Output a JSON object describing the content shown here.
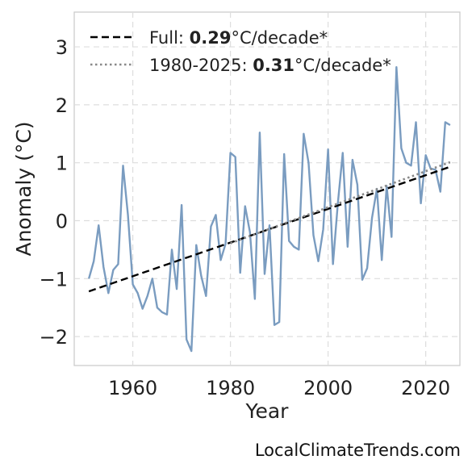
{
  "chart_data": {
    "type": "line",
    "xlabel": "Year",
    "ylabel": "Anomaly (°C)",
    "xlim": [
      1948,
      2027
    ],
    "ylim": [
      -2.5,
      3.6
    ],
    "x_ticks": [
      1960,
      1980,
      2000,
      2020
    ],
    "y_ticks": [
      -2,
      -1,
      0,
      1,
      2,
      3
    ],
    "y_tick_labels": [
      "−2",
      "−1",
      "0",
      "1",
      "2",
      "3"
    ],
    "grid": true,
    "legend_position": "top-left",
    "series": [
      {
        "style": "solid",
        "color": "#7a9cc0",
        "x": [
          1951,
          1952,
          1953,
          1954,
          1955,
          1956,
          1957,
          1958,
          1959,
          1960,
          1961,
          1962,
          1963,
          1964,
          1965,
          1966,
          1967,
          1968,
          1969,
          1970,
          1971,
          1972,
          1973,
          1974,
          1975,
          1976,
          1977,
          1978,
          1979,
          1980,
          1981,
          1982,
          1983,
          1984,
          1985,
          1986,
          1987,
          1988,
          1989,
          1990,
          1991,
          1992,
          1993,
          1994,
          1995,
          1996,
          1997,
          1998,
          1999,
          2000,
          2001,
          2002,
          2003,
          2004,
          2005,
          2006,
          2007,
          2008,
          2009,
          2010,
          2011,
          2012,
          2013,
          2014,
          2015,
          2016,
          2017,
          2018,
          2019,
          2020,
          2021,
          2022,
          2023,
          2024,
          2025
        ],
        "y": [
          -1.0,
          -0.7,
          -0.08,
          -0.8,
          -1.25,
          -0.85,
          -0.75,
          0.95,
          0.1,
          -1.1,
          -1.25,
          -1.52,
          -1.3,
          -1.0,
          -1.5,
          -1.58,
          -1.62,
          -0.5,
          -1.18,
          0.27,
          -2.05,
          -2.25,
          -0.42,
          -0.95,
          -1.3,
          -0.1,
          0.1,
          -0.68,
          -0.4,
          1.17,
          1.1,
          -0.9,
          0.25,
          -0.2,
          -1.35,
          1.52,
          -0.92,
          -0.08,
          -1.8,
          -1.75,
          1.15,
          -0.35,
          -0.45,
          -0.5,
          1.5,
          1.0,
          -0.25,
          -0.7,
          -0.15,
          1.23,
          -0.75,
          0.3,
          1.17,
          -0.45,
          1.05,
          0.62,
          -1.02,
          -0.82,
          0.05,
          0.55,
          -0.68,
          0.6,
          -0.28,
          2.65,
          1.25,
          1.0,
          0.95,
          1.7,
          0.3,
          1.13,
          0.9,
          0.88,
          0.5,
          1.7,
          1.65
        ]
      },
      {
        "name": "Full: 0.29°C/decade*",
        "name_parts": [
          "Full: ",
          "0.29",
          "°C/decade*"
        ],
        "style": "dashed",
        "color": "#000000",
        "x": [
          1951,
          2025
        ],
        "y": [
          -1.22,
          0.93
        ]
      },
      {
        "name": "1980-2025: 0.31°C/decade*",
        "name_parts": [
          "1980-2025: ",
          "0.31",
          "°C/decade*"
        ],
        "style": "dotted",
        "color": "#888888",
        "x": [
          1980,
          2025
        ],
        "y": [
          -0.39,
          1.01
        ]
      }
    ]
  },
  "credit": "LocalClimateTrends.com"
}
